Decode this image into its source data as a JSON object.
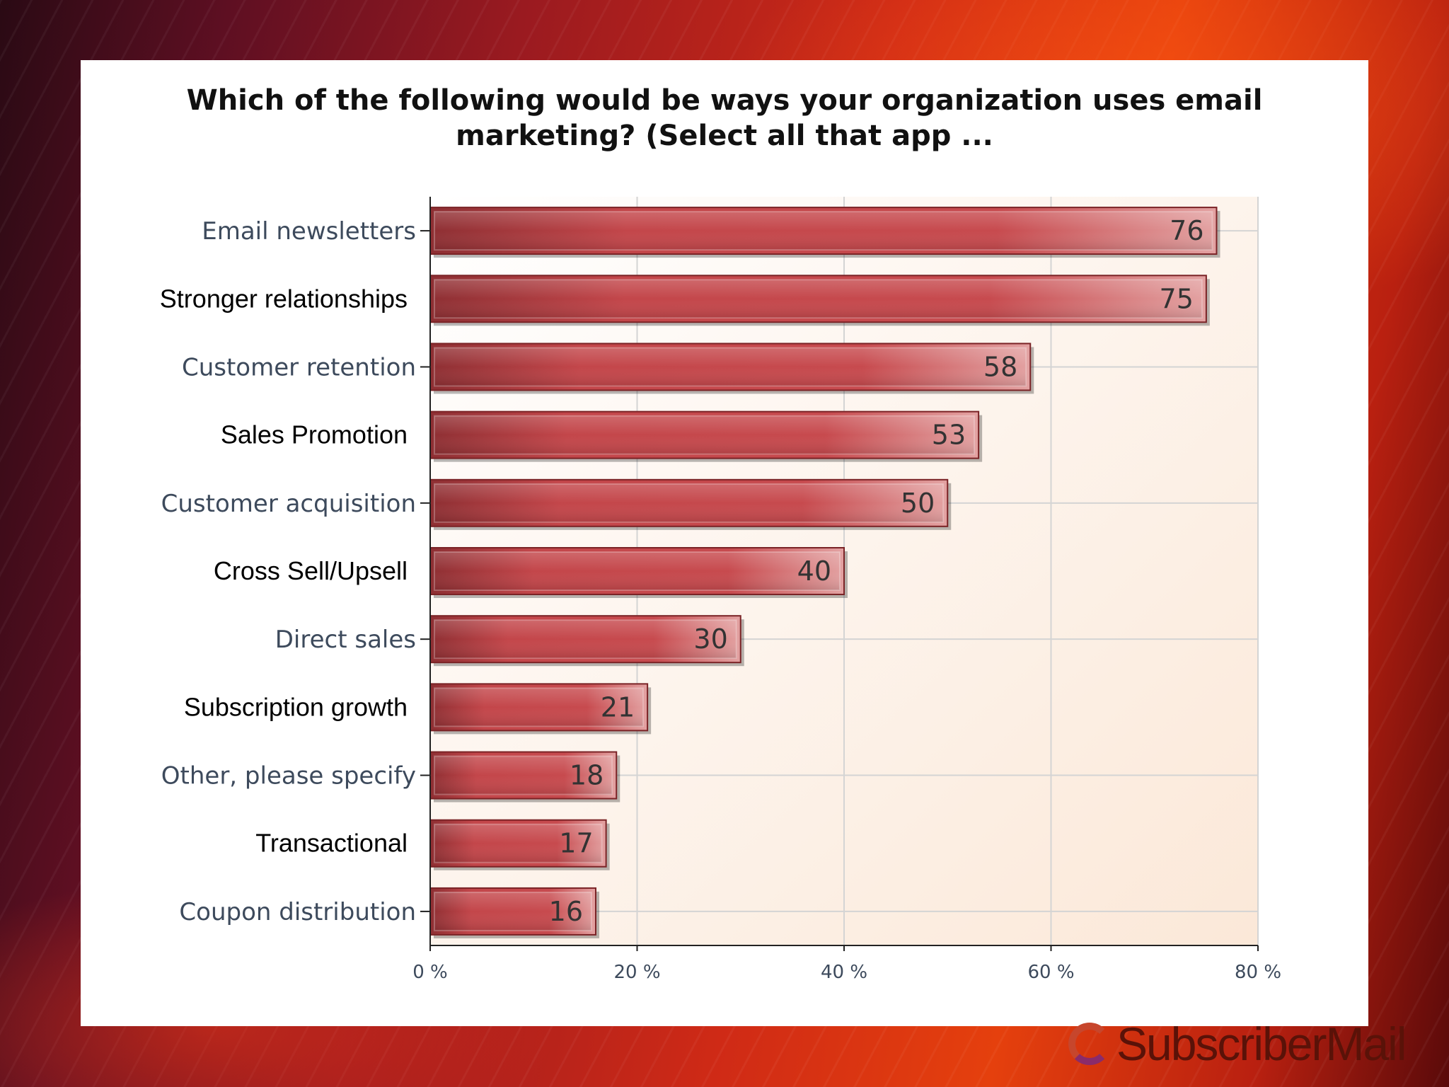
{
  "chart_data": {
    "type": "bar",
    "orientation": "horizontal",
    "title": "Which of the following would be ways your organization uses email marketing? (Select all that app ...",
    "title_lines": [
      "Which of the following would be ways your organization uses email",
      "marketing? (Select all that app ..."
    ],
    "categories": [
      "Email newsletters",
      "Stronger relationships",
      "Customer retention",
      "Sales Promotion",
      "Customer acquisition",
      "Cross Sell/Upsell",
      "Direct sales",
      "Subscription growth",
      "Other, please specify",
      "Transactional",
      "Coupon distribution"
    ],
    "values": [
      76,
      75,
      58,
      53,
      50,
      40,
      30,
      21,
      18,
      17,
      16
    ],
    "data_labels": [
      "76",
      "75",
      "58",
      "53",
      "50",
      "40",
      "30",
      "21",
      "18",
      "17",
      "16"
    ],
    "xlim": [
      0,
      80
    ],
    "xticks": [
      "0 %",
      "20 %",
      "40 %",
      "60 %",
      "80 %"
    ],
    "grid": true,
    "bar_color": "#c0464a"
  },
  "branding": {
    "logo_text": "SubscriberMail"
  }
}
